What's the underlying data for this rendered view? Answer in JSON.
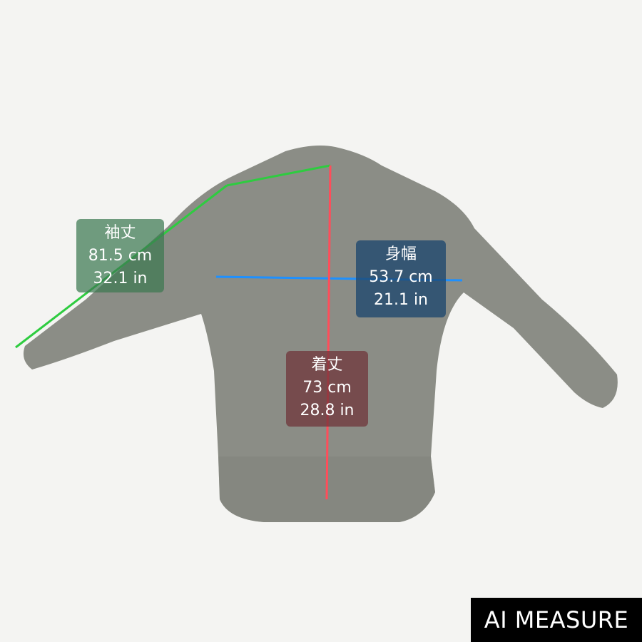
{
  "measurements": [
    {
      "key": "sleeve",
      "label": "袖丈",
      "cm": "81.5 cm",
      "in": "32.1 in",
      "color": "#2ecc40"
    },
    {
      "key": "width",
      "label": "身幅",
      "cm": "53.7 cm",
      "in": "21.1 in",
      "color": "#1e90ff"
    },
    {
      "key": "length",
      "label": "着丈",
      "cm": "73 cm",
      "in": "28.8 in",
      "color": "#ff4d5a"
    }
  ],
  "badge": "AI MEASURE",
  "colors": {
    "garment": "#8b8d86",
    "background": "#f4f4f2"
  }
}
